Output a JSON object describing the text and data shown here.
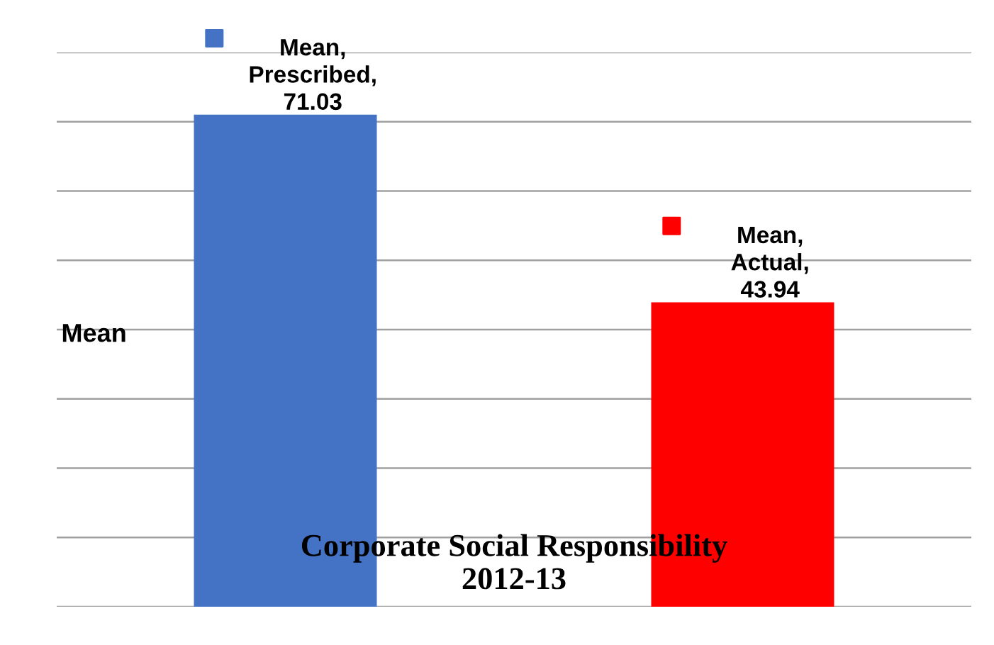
{
  "chart_data": {
    "type": "bar",
    "title": "Corporate Social Responsibility\n2012-13",
    "ylabel": "Mean",
    "categories": [
      null,
      null
    ],
    "values": [
      71.03,
      43.94
    ],
    "colors": [
      "#4472c4",
      "#ff0000"
    ],
    "value_labels": [
      "Mean, Prescribed, 71.03",
      "Mean, Actual, 43.94"
    ],
    "ylim": [
      0,
      80
    ],
    "yticks": [
      {
        "value": 0,
        "label": null
      },
      {
        "value": 10,
        "label": null
      },
      {
        "value": 20,
        "label": null
      },
      {
        "value": 30,
        "label": null
      },
      {
        "value": 40,
        "label": null
      },
      {
        "value": 50,
        "label": null
      },
      {
        "value": 60,
        "label": null
      },
      {
        "value": 70,
        "label": null
      },
      {
        "value": 80,
        "label": null
      }
    ],
    "grid": "y"
  }
}
